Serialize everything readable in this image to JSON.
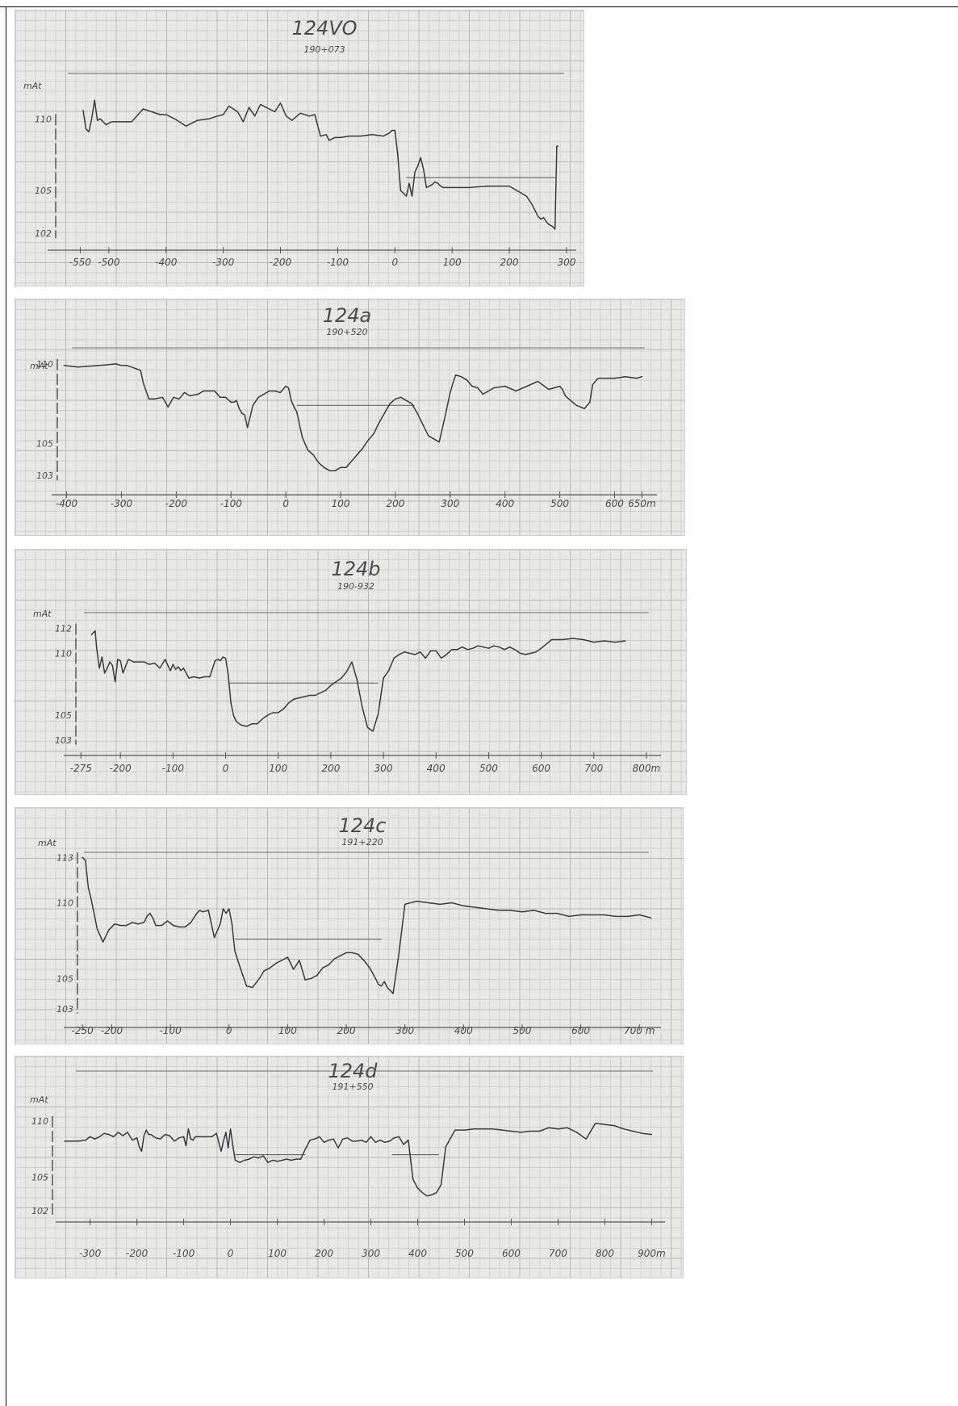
{
  "chart_data": [
    {
      "type": "line",
      "title": "124VO",
      "subtitle": "190+073",
      "ylabel": "mAt",
      "y_ticks": [
        110,
        105,
        102
      ],
      "ylim": [
        101.5,
        112.5
      ],
      "x_ticks": [
        {
          "v": -550,
          "t": "-550"
        },
        {
          "v": -500,
          "t": "-500"
        },
        {
          "v": -400,
          "t": "-400"
        },
        {
          "v": -300,
          "t": "-300"
        },
        {
          "v": -200,
          "t": "-200"
        },
        {
          "v": -100,
          "t": "-100"
        },
        {
          "v": 0,
          "t": "0"
        },
        {
          "v": 100,
          "t": "100"
        },
        {
          "v": 200,
          "t": "200"
        },
        {
          "v": 300,
          "t": "300"
        }
      ],
      "xlim": [
        -600,
        310
      ],
      "water_level": {
        "y": 105.9,
        "from": 20,
        "to": 280
      },
      "x": [
        -545,
        -540,
        -535,
        -530,
        -525,
        -520,
        -515,
        -505,
        -495,
        -480,
        -460,
        -440,
        -425,
        -410,
        -400,
        -385,
        -365,
        -345,
        -325,
        -310,
        -300,
        -290,
        -275,
        -265,
        -255,
        -245,
        -235,
        -225,
        -210,
        -200,
        -190,
        -180,
        -165,
        -150,
        -140,
        -130,
        -120,
        -115,
        -105,
        -95,
        -80,
        -60,
        -40,
        -20,
        -10,
        -5,
        0,
        5,
        10,
        15,
        20,
        25,
        30,
        35,
        40,
        45,
        50,
        55,
        65,
        70,
        75,
        80,
        85,
        95,
        105,
        130,
        160,
        200,
        230,
        240,
        245,
        250,
        255,
        260,
        265,
        270,
        275,
        280,
        283,
        285
      ],
      "y": [
        110.6,
        109.3,
        109.1,
        110.0,
        111.3,
        109.9,
        110.0,
        109.6,
        109.8,
        109.8,
        109.8,
        110.7,
        110.5,
        110.3,
        110.3,
        110.0,
        109.5,
        109.9,
        110.0,
        110.2,
        110.3,
        110.9,
        110.5,
        109.8,
        110.8,
        110.2,
        111.0,
        110.8,
        110.5,
        111.1,
        110.2,
        109.9,
        110.4,
        110.2,
        110.3,
        108.8,
        108.9,
        108.5,
        108.7,
        108.7,
        108.8,
        108.8,
        108.9,
        108.8,
        109.0,
        109.2,
        109.2,
        107.5,
        105.0,
        104.8,
        104.6,
        105.5,
        104.6,
        106.3,
        106.7,
        107.3,
        106.5,
        105.2,
        105.4,
        105.6,
        105.5,
        105.3,
        105.2,
        105.2,
        105.2,
        105.2,
        105.3,
        105.3,
        104.6,
        104.0,
        103.6,
        103.2,
        103.0,
        103.1,
        102.8,
        102.6,
        102.5,
        102.3,
        108.1,
        108.1
      ]
    },
    {
      "type": "line",
      "title": "124a",
      "subtitle": "190+520",
      "ylabel": "mAt",
      "y_ticks": [
        110,
        105,
        103
      ],
      "ylim": [
        102.3,
        110.6
      ],
      "x_ticks": [
        {
          "v": -400,
          "t": "-400"
        },
        {
          "v": -300,
          "t": "-300"
        },
        {
          "v": -200,
          "t": "-200"
        },
        {
          "v": -100,
          "t": "-100"
        },
        {
          "v": 0,
          "t": "0"
        },
        {
          "v": 100,
          "t": "100"
        },
        {
          "v": 200,
          "t": "200"
        },
        {
          "v": 300,
          "t": "300"
        },
        {
          "v": 400,
          "t": "400"
        },
        {
          "v": 500,
          "t": "500"
        },
        {
          "v": 600,
          "t": "600"
        },
        {
          "v": 650,
          "t": "650m"
        }
      ],
      "xlim": [
        -420,
        670
      ],
      "water_level": {
        "y": 107.4,
        "from": 20,
        "to": 235
      },
      "x": [
        -405,
        -380,
        -340,
        -310,
        -300,
        -290,
        -265,
        -260,
        -250,
        -240,
        -225,
        -215,
        -205,
        -195,
        -185,
        -175,
        -160,
        -150,
        -140,
        -130,
        -120,
        -110,
        -100,
        -95,
        -90,
        -85,
        -80,
        -75,
        -70,
        -60,
        -50,
        -40,
        -30,
        -20,
        -10,
        0,
        5,
        10,
        15,
        20,
        30,
        40,
        50,
        60,
        70,
        80,
        90,
        100,
        110,
        120,
        130,
        140,
        150,
        160,
        170,
        180,
        190,
        200,
        210,
        220,
        230,
        240,
        250,
        260,
        270,
        280,
        290,
        300,
        305,
        310,
        320,
        330,
        340,
        350,
        360,
        380,
        400,
        420,
        440,
        460,
        480,
        500,
        505,
        510,
        520,
        530,
        545,
        555,
        560,
        570,
        580,
        600,
        620,
        640,
        650
      ],
      "y": [
        109.9,
        109.8,
        109.9,
        110.0,
        109.9,
        109.9,
        109.6,
        108.8,
        107.8,
        107.8,
        107.9,
        107.3,
        107.9,
        107.8,
        108.2,
        108.0,
        108.1,
        108.3,
        108.3,
        108.3,
        107.9,
        107.9,
        107.6,
        107.6,
        107.7,
        107.2,
        106.9,
        106.8,
        106.0,
        107.4,
        107.9,
        108.1,
        108.3,
        108.3,
        108.2,
        108.6,
        108.5,
        107.7,
        107.3,
        107.0,
        105.4,
        104.6,
        104.3,
        103.8,
        103.5,
        103.3,
        103.3,
        103.5,
        103.5,
        103.9,
        104.3,
        104.7,
        105.2,
        105.6,
        106.3,
        106.9,
        107.5,
        107.8,
        107.9,
        107.7,
        107.5,
        106.9,
        106.2,
        105.5,
        105.3,
        105.1,
        106.6,
        108.2,
        108.8,
        109.3,
        109.2,
        109.0,
        108.6,
        108.5,
        108.1,
        108.5,
        108.6,
        108.3,
        108.6,
        108.9,
        108.4,
        108.6,
        108.4,
        108.0,
        107.7,
        107.4,
        107.2,
        107.6,
        108.7,
        109.1,
        109.1,
        109.1,
        109.2,
        109.1,
        109.2
      ]
    },
    {
      "type": "line",
      "title": "124b",
      "subtitle": "190-932",
      "ylabel": "mAt",
      "y_ticks": [
        112,
        110,
        105,
        103
      ],
      "ylim": [
        102.4,
        112.5
      ],
      "x_ticks": [
        {
          "v": -275,
          "t": "-275"
        },
        {
          "v": -200,
          "t": "-200"
        },
        {
          "v": -100,
          "t": "-100"
        },
        {
          "v": 0,
          "t": "0"
        },
        {
          "v": 100,
          "t": "100"
        },
        {
          "v": 200,
          "t": "200"
        },
        {
          "v": 300,
          "t": "300"
        },
        {
          "v": 400,
          "t": "400"
        },
        {
          "v": 500,
          "t": "500"
        },
        {
          "v": 600,
          "t": "600"
        },
        {
          "v": 700,
          "t": "700"
        },
        {
          "v": 800,
          "t": "800m"
        }
      ],
      "xlim": [
        -300,
        820
      ],
      "water_level": {
        "y": 107.6,
        "from": 5,
        "to": 290
      },
      "x": [
        -255,
        -248,
        -245,
        -240,
        -235,
        -230,
        -225,
        -220,
        -215,
        -210,
        -205,
        -200,
        -195,
        -185,
        -175,
        -165,
        -155,
        -145,
        -135,
        -125,
        -115,
        -105,
        -100,
        -95,
        -90,
        -85,
        -80,
        -70,
        -60,
        -50,
        -40,
        -30,
        -20,
        -15,
        -10,
        -5,
        0,
        5,
        10,
        15,
        20,
        30,
        40,
        50,
        60,
        70,
        80,
        90,
        100,
        110,
        120,
        130,
        140,
        150,
        160,
        170,
        180,
        190,
        200,
        210,
        220,
        230,
        240,
        250,
        260,
        270,
        280,
        290,
        300,
        310,
        320,
        330,
        340,
        350,
        360,
        370,
        380,
        390,
        400,
        410,
        420,
        430,
        440,
        450,
        460,
        470,
        480,
        490,
        500,
        510,
        520,
        530,
        540,
        550,
        560,
        570,
        580,
        590,
        600,
        620,
        640,
        660,
        680,
        700,
        720,
        740,
        760
      ],
      "y": [
        111.5,
        111.8,
        110.4,
        108.8,
        109.7,
        108.4,
        108.8,
        109.3,
        109.0,
        107.7,
        109.5,
        109.4,
        108.4,
        109.5,
        109.3,
        109.3,
        109.3,
        109.1,
        109.2,
        108.8,
        109.5,
        108.6,
        109.1,
        108.7,
        108.9,
        108.6,
        108.8,
        108.0,
        108.1,
        108.0,
        108.1,
        108.1,
        109.4,
        109.5,
        109.4,
        109.7,
        109.6,
        108.3,
        106.0,
        105.0,
        104.5,
        104.2,
        104.1,
        104.3,
        104.3,
        104.7,
        105.0,
        105.2,
        105.2,
        105.5,
        106.0,
        106.3,
        106.4,
        106.5,
        106.6,
        106.6,
        106.8,
        107.0,
        107.4,
        107.7,
        108.0,
        108.5,
        109.3,
        107.8,
        105.6,
        104.0,
        103.7,
        105.1,
        108.0,
        108.6,
        109.6,
        109.9,
        110.1,
        110.0,
        109.9,
        110.1,
        109.6,
        110.2,
        110.2,
        109.6,
        109.9,
        110.3,
        110.3,
        110.5,
        110.3,
        110.4,
        110.6,
        110.5,
        110.4,
        110.6,
        110.5,
        110.3,
        110.5,
        110.3,
        110.0,
        109.9,
        110.0,
        110.1,
        110.4,
        111.1,
        111.1,
        111.2,
        111.1,
        110.9,
        111.0,
        110.9,
        111.0
      ]
    },
    {
      "type": "line",
      "title": "124c",
      "subtitle": "191+220",
      "ylabel": "mAt",
      "y_ticks": [
        113,
        110,
        105,
        103
      ],
      "ylim": [
        102.4,
        113.6
      ],
      "x_ticks": [
        {
          "v": -250,
          "t": "-250"
        },
        {
          "v": -200,
          "t": "-200"
        },
        {
          "v": -100,
          "t": "-100"
        },
        {
          "v": 0,
          "t": "0"
        },
        {
          "v": 100,
          "t": "100"
        },
        {
          "v": 200,
          "t": "200"
        },
        {
          "v": 300,
          "t": "300"
        },
        {
          "v": 400,
          "t": "400"
        },
        {
          "v": 500,
          "t": "500"
        },
        {
          "v": 600,
          "t": "600"
        },
        {
          "v": 700,
          "t": "700 m"
        }
      ],
      "xlim": [
        -275,
        730
      ],
      "water_level": {
        "y": 107.6,
        "from": 10,
        "to": 260
      },
      "x": [
        -250,
        -245,
        -240,
        -235,
        -225,
        -215,
        -205,
        -195,
        -185,
        -175,
        -165,
        -155,
        -145,
        -140,
        -135,
        -130,
        -125,
        -115,
        -105,
        -95,
        -85,
        -75,
        -65,
        -60,
        -55,
        -50,
        -45,
        -35,
        -25,
        -15,
        -10,
        -5,
        0,
        5,
        10,
        20,
        30,
        40,
        50,
        60,
        70,
        80,
        90,
        100,
        110,
        120,
        130,
        140,
        150,
        160,
        170,
        180,
        190,
        200,
        210,
        220,
        230,
        240,
        250,
        255,
        260,
        265,
        270,
        280,
        290,
        300,
        320,
        340,
        360,
        380,
        400,
        420,
        440,
        460,
        480,
        500,
        520,
        540,
        560,
        580,
        600,
        620,
        640,
        660,
        680,
        700,
        720
      ],
      "y": [
        113.0,
        112.8,
        111.0,
        110.2,
        108.3,
        107.4,
        108.2,
        108.6,
        108.5,
        108.5,
        108.7,
        108.6,
        108.7,
        109.1,
        109.3,
        109.0,
        108.5,
        108.5,
        108.8,
        108.5,
        108.4,
        108.4,
        108.7,
        109.0,
        109.3,
        109.5,
        109.4,
        109.5,
        107.7,
        108.6,
        109.6,
        109.3,
        109.6,
        108.6,
        106.8,
        105.6,
        104.5,
        104.4,
        104.9,
        105.5,
        105.7,
        106.0,
        106.2,
        106.4,
        105.6,
        106.2,
        104.9,
        105.0,
        105.2,
        105.7,
        105.9,
        106.3,
        106.5,
        106.7,
        106.7,
        106.6,
        106.2,
        105.7,
        105.0,
        104.6,
        104.5,
        104.8,
        104.4,
        104.0,
        106.7,
        109.9,
        110.1,
        110.0,
        109.9,
        110.0,
        109.8,
        109.7,
        109.6,
        109.5,
        109.5,
        109.4,
        109.5,
        109.3,
        109.3,
        109.1,
        109.2,
        109.2,
        109.2,
        109.1,
        109.1,
        109.2,
        109.0
      ]
    },
    {
      "type": "line",
      "title": "124d",
      "subtitle": "191+550",
      "ylabel": "mAt",
      "y_ticks": [
        110,
        105,
        102
      ],
      "ylim": [
        101.7,
        111.3
      ],
      "x_ticks": [
        {
          "v": -300,
          "t": "-300"
        },
        {
          "v": -200,
          "t": "-200"
        },
        {
          "v": -100,
          "t": "-100"
        },
        {
          "v": 0,
          "t": "0"
        },
        {
          "v": 100,
          "t": "100"
        },
        {
          "v": 200,
          "t": "200"
        },
        {
          "v": 300,
          "t": "300"
        },
        {
          "v": 400,
          "t": "400"
        },
        {
          "v": 500,
          "t": "500"
        },
        {
          "v": 600,
          "t": "600"
        },
        {
          "v": 700,
          "t": "700"
        },
        {
          "v": 800,
          "t": "800"
        },
        {
          "v": 900,
          "t": "900m"
        }
      ],
      "xlim": [
        -365,
        920
      ],
      "water_level_segments": [
        {
          "y": 107.0,
          "from": 10,
          "to": 160
        },
        {
          "y": 107.0,
          "from": 345,
          "to": 445
        }
      ],
      "x": [
        -355,
        -340,
        -325,
        -310,
        -300,
        -290,
        -280,
        -270,
        -260,
        -250,
        -240,
        -230,
        -220,
        -210,
        -200,
        -195,
        -190,
        -185,
        -180,
        -175,
        -170,
        -160,
        -150,
        -140,
        -130,
        -120,
        -110,
        -100,
        -95,
        -90,
        -85,
        -80,
        -75,
        -70,
        -60,
        -50,
        -40,
        -30,
        -20,
        -15,
        -10,
        -5,
        0,
        5,
        10,
        20,
        30,
        40,
        50,
        60,
        70,
        80,
        90,
        100,
        110,
        120,
        130,
        140,
        150,
        160,
        170,
        180,
        190,
        200,
        210,
        220,
        230,
        240,
        250,
        260,
        270,
        280,
        290,
        300,
        310,
        320,
        330,
        340,
        350,
        360,
        370,
        380,
        390,
        400,
        410,
        420,
        430,
        440,
        450,
        460,
        480,
        500,
        520,
        540,
        560,
        580,
        600,
        620,
        640,
        660,
        680,
        700,
        720,
        740,
        760,
        780,
        800,
        820,
        840,
        860,
        880,
        900
      ],
      "y": [
        108.2,
        108.2,
        108.2,
        108.3,
        108.6,
        108.4,
        108.6,
        108.9,
        108.8,
        108.6,
        109.0,
        108.7,
        109.0,
        108.3,
        108.5,
        107.7,
        107.3,
        108.7,
        109.2,
        108.8,
        108.8,
        108.5,
        108.4,
        108.8,
        108.7,
        108.2,
        108.5,
        108.6,
        107.8,
        109.3,
        108.4,
        108.3,
        108.6,
        108.6,
        108.6,
        108.6,
        108.6,
        108.9,
        107.3,
        108.2,
        109.0,
        107.6,
        109.3,
        107.8,
        106.5,
        106.3,
        106.5,
        106.6,
        106.8,
        106.7,
        106.9,
        106.3,
        106.5,
        106.4,
        106.5,
        106.6,
        106.5,
        106.6,
        106.6,
        107.5,
        108.3,
        108.4,
        108.6,
        108.1,
        108.3,
        108.4,
        107.6,
        108.4,
        108.5,
        108.2,
        108.2,
        108.3,
        108.1,
        108.6,
        108.1,
        108.3,
        108.1,
        108.2,
        108.5,
        108.6,
        107.9,
        108.3,
        104.8,
        104.0,
        103.6,
        103.3,
        103.4,
        103.6,
        104.3,
        107.7,
        109.2,
        109.2,
        109.3,
        109.3,
        109.3,
        109.2,
        109.1,
        109.0,
        109.1,
        109.1,
        109.4,
        109.3,
        109.4,
        109.0,
        108.4,
        109.8,
        109.7,
        109.6,
        109.3,
        109.1,
        108.9,
        108.8
      ]
    }
  ]
}
